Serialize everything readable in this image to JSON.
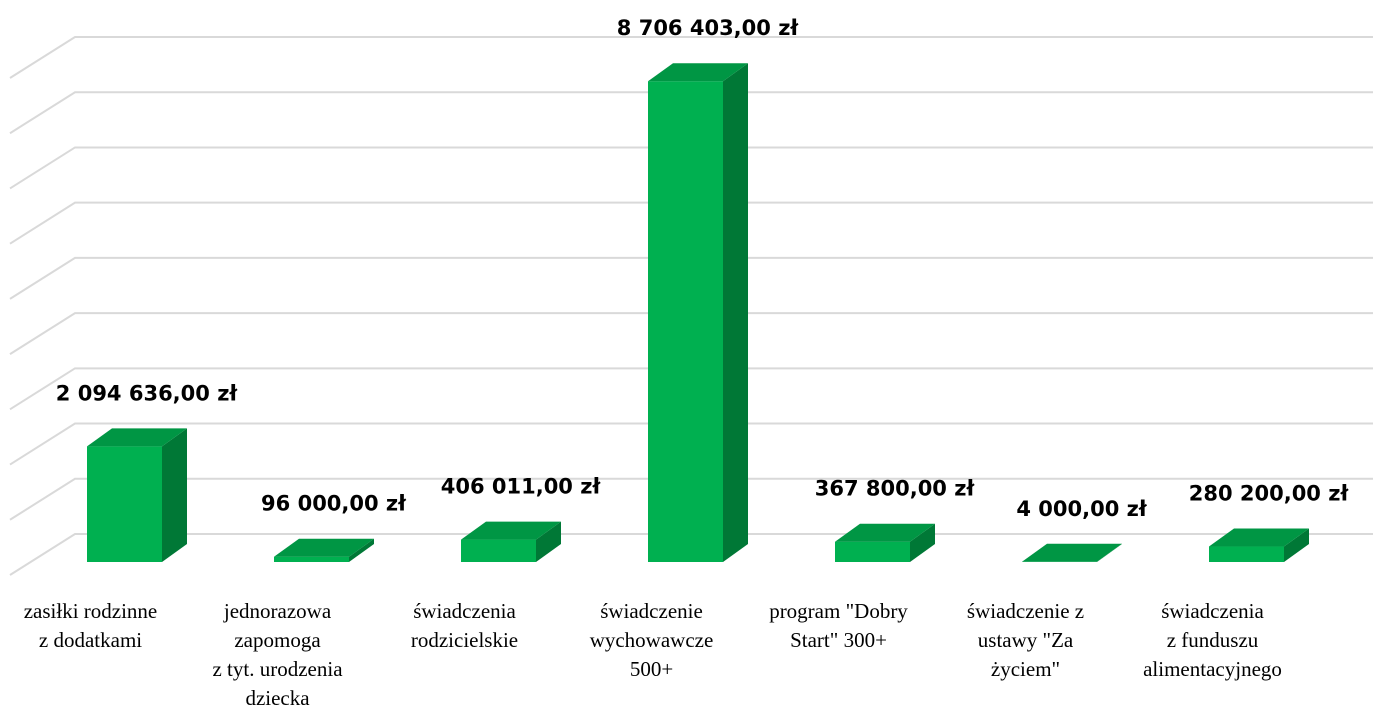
{
  "chart_data": {
    "type": "bar3d",
    "categories": [
      "zasiłki rodzinne\nz dodatkami",
      "jednorazowa\nzapomoga\nz tyt. urodzenia\ndziecka",
      "świadczenia\nrodzicielskie",
      "świadczenie\nwychowawcze\n500+",
      "program \"Dobry\nStart\" 300+",
      "świadczenie z\nustawy \"Za\nżyciem\"",
      "świadczenia\nz funduszu\nalimentacyjnego"
    ],
    "values": [
      2094636,
      96000,
      406011,
      8706403,
      367800,
      4000,
      280200
    ],
    "value_labels": [
      "2 094 636,00 zł",
      "96 000,00 zł",
      "406 011,00 zł",
      "8 706 403,00 zł",
      "367 800,00 zł",
      "4 000,00 zł",
      "280 200,00 zł"
    ],
    "color": "#00b050",
    "ylim": [
      0,
      9000000
    ],
    "yticks": [
      0,
      1000000,
      2000000,
      3000000,
      4000000,
      5000000,
      6000000,
      7000000,
      8000000,
      9000000
    ],
    "grid": true
  }
}
